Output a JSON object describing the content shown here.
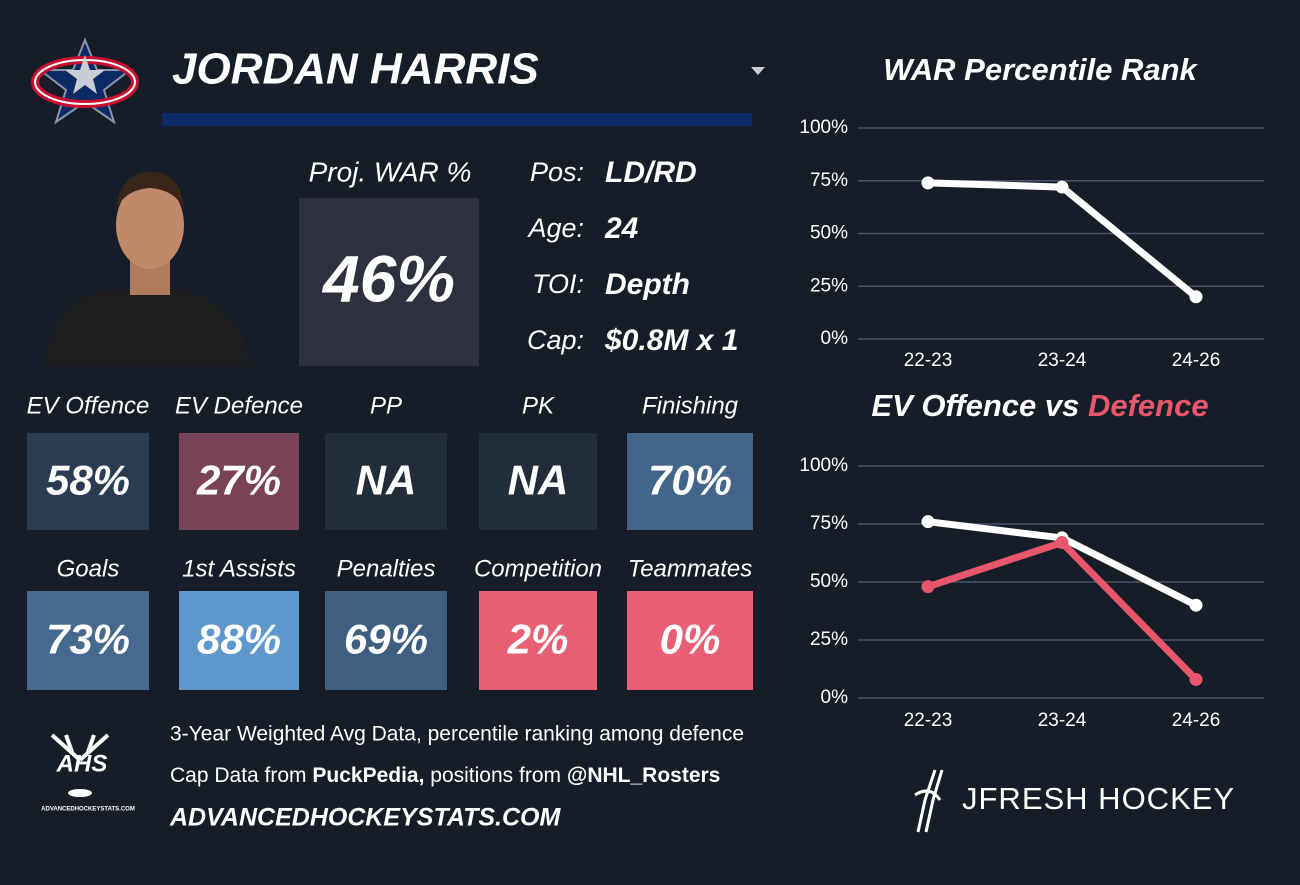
{
  "player": {
    "name": "JORDAN HARRIS"
  },
  "proj_war": {
    "label": "Proj. WAR %",
    "value": "46%"
  },
  "info": [
    {
      "label": "Pos:",
      "value": "LD/RD"
    },
    {
      "label": "Age:",
      "value": "24"
    },
    {
      "label": "TOI:",
      "value": "Depth"
    },
    {
      "label": "Cap:",
      "value": "$0.8M x 1"
    }
  ],
  "tiles": [
    {
      "label": "EV Offence",
      "value": "58%",
      "color": "#2b3b52"
    },
    {
      "label": "EV Defence",
      "value": "27%",
      "color": "#7a4257"
    },
    {
      "label": "PP",
      "value": "NA",
      "color": "#222d3b"
    },
    {
      "label": "PK",
      "value": "NA",
      "color": "#222d3b"
    },
    {
      "label": "Finishing",
      "value": "70%",
      "color": "#44658a"
    },
    {
      "label": "Goals",
      "value": "73%",
      "color": "#46698d"
    },
    {
      "label": "1st Assists",
      "value": "88%",
      "color": "#5d97cc"
    },
    {
      "label": "Penalties",
      "value": "69%",
      "color": "#3f5f80"
    },
    {
      "label": "Competition",
      "value": "2%",
      "color": "#e65f73"
    },
    {
      "label": "Teammates",
      "value": "0%",
      "color": "#e85f73"
    }
  ],
  "footer": {
    "logo_text": "AHS",
    "logo_sub": "ADVANCEDHOCKEYSTATS.COM",
    "line1": "3-Year Weighted Avg Data, percentile ranking among defence",
    "line2": [
      "Cap Data from ",
      "PuckPedia,",
      " positions from ",
      "@NHL_Rosters"
    ],
    "site": "ADVANCEDHOCKEYSTATS.COM",
    "brand": "JFRESH HOCKEY"
  },
  "chart_data": [
    {
      "type": "line",
      "title": [
        "WAR Percentile Rank"
      ],
      "title_colors": [
        "#ffffff"
      ],
      "categories": [
        "22-23",
        "23-24",
        "24-26"
      ],
      "series": [
        {
          "color": "#ffffff",
          "values": [
            74,
            72,
            20
          ]
        }
      ],
      "ylim": [
        0,
        100
      ],
      "yticks": [
        {
          "value": 0,
          "label": "0%"
        },
        {
          "value": 25,
          "label": "25%"
        },
        {
          "value": 50,
          "label": "50%"
        },
        {
          "value": 75,
          "label": "75%"
        },
        {
          "value": 100,
          "label": "100%"
        }
      ],
      "grid": true
    },
    {
      "type": "line",
      "title": [
        "EV Offence vs ",
        "Defence"
      ],
      "title_colors": [
        "#ffffff",
        "#e8566b"
      ],
      "categories": [
        "22-23",
        "23-24",
        "24-26"
      ],
      "series": [
        {
          "color": "#ffffff",
          "values": [
            76,
            69,
            40
          ]
        },
        {
          "color": "#e8566b",
          "values": [
            48,
            67,
            8
          ]
        }
      ],
      "ylim": [
        0,
        100
      ],
      "yticks": [
        {
          "value": 0,
          "label": "0%"
        },
        {
          "value": 25,
          "label": "25%"
        },
        {
          "value": 50,
          "label": "50%"
        },
        {
          "value": 75,
          "label": "75%"
        },
        {
          "value": 100,
          "label": "100%"
        }
      ],
      "grid": true
    }
  ]
}
